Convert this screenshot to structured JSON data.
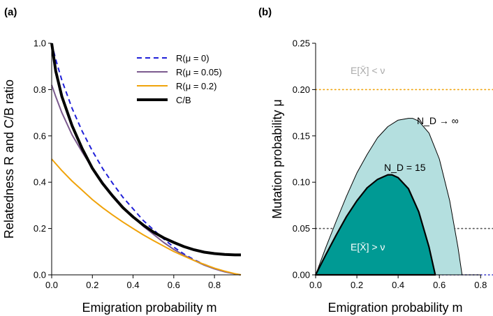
{
  "chart_data": [
    {
      "panel_label": "(a)",
      "type": "line",
      "xlabel": "Emigration probability m",
      "ylabel": "Relatedness R and C/B ratio",
      "xlim": [
        0,
        0.93
      ],
      "ylim": [
        0,
        1.0
      ],
      "xticks": [
        0.0,
        0.2,
        0.4,
        0.6,
        0.8
      ],
      "yticks": [
        0.0,
        0.2,
        0.4,
        0.6,
        0.8,
        1.0
      ],
      "legend_position": "top-right",
      "series": [
        {
          "name": "R(μ = 0)",
          "color": "#1f1fd8",
          "dash": "dashed",
          "x": [
            0,
            0.02,
            0.05,
            0.1,
            0.15,
            0.2,
            0.25,
            0.3,
            0.35,
            0.4,
            0.45,
            0.5,
            0.55,
            0.6,
            0.65,
            0.7,
            0.75,
            0.8,
            0.85,
            0.9,
            0.93
          ],
          "y": [
            1.0,
            0.93,
            0.84,
            0.72,
            0.62,
            0.535,
            0.46,
            0.395,
            0.335,
            0.285,
            0.235,
            0.195,
            0.155,
            0.12,
            0.09,
            0.065,
            0.045,
            0.028,
            0.014,
            0.004,
            0.0
          ]
        },
        {
          "name": "R(μ = 0.05)",
          "color": "#7b5a8e",
          "dash": "solid",
          "x": [
            0,
            0.02,
            0.05,
            0.1,
            0.15,
            0.2,
            0.25,
            0.3,
            0.35,
            0.4,
            0.45,
            0.5,
            0.55,
            0.6,
            0.65,
            0.7,
            0.75,
            0.8,
            0.85,
            0.9,
            0.93
          ],
          "y": [
            0.82,
            0.77,
            0.7,
            0.605,
            0.53,
            0.46,
            0.4,
            0.345,
            0.295,
            0.25,
            0.21,
            0.175,
            0.14,
            0.11,
            0.085,
            0.062,
            0.042,
            0.026,
            0.013,
            0.004,
            0.0
          ]
        },
        {
          "name": "R(μ = 0.2)",
          "color": "#f0a30a",
          "dash": "solid",
          "x": [
            0,
            0.05,
            0.1,
            0.15,
            0.2,
            0.25,
            0.3,
            0.35,
            0.4,
            0.45,
            0.5,
            0.55,
            0.6,
            0.65,
            0.7,
            0.75,
            0.8,
            0.85,
            0.9,
            0.93
          ],
          "y": [
            0.5,
            0.45,
            0.405,
            0.365,
            0.325,
            0.29,
            0.258,
            0.228,
            0.2,
            0.173,
            0.148,
            0.124,
            0.101,
            0.081,
            0.062,
            0.045,
            0.029,
            0.016,
            0.005,
            0.0
          ]
        },
        {
          "name": "C/B",
          "color": "#000000",
          "dash": "solid",
          "x": [
            0,
            0.02,
            0.05,
            0.1,
            0.15,
            0.2,
            0.25,
            0.3,
            0.35,
            0.4,
            0.45,
            0.5,
            0.55,
            0.6,
            0.65,
            0.7,
            0.75,
            0.8,
            0.85,
            0.9,
            0.93
          ],
          "y": [
            1.0,
            0.88,
            0.77,
            0.645,
            0.545,
            0.46,
            0.395,
            0.34,
            0.29,
            0.25,
            0.215,
            0.185,
            0.16,
            0.14,
            0.122,
            0.108,
            0.098,
            0.092,
            0.088,
            0.086,
            0.086
          ]
        }
      ]
    },
    {
      "panel_label": "(b)",
      "type": "area",
      "xlabel": "Emigration probability m",
      "ylabel": "Mutation probability μ",
      "xlim": [
        0,
        0.86
      ],
      "ylim": [
        0,
        0.25
      ],
      "xticks": [
        0.0,
        0.2,
        0.4,
        0.6,
        0.8
      ],
      "yticks": [
        0.0,
        0.05,
        0.1,
        0.15,
        0.2,
        0.25
      ],
      "hlines": [
        {
          "y": 0.2,
          "color": "#f0a30a",
          "style": "dotted"
        },
        {
          "y": 0.05,
          "color": "#555555",
          "style": "dotted"
        },
        {
          "y": 0.0,
          "color": "#3333cc",
          "style": "dotted"
        }
      ],
      "series": [
        {
          "name": "N_D → ∞",
          "color": "#000000",
          "fill": "#b4dfdf",
          "x": [
            0,
            0.05,
            0.1,
            0.15,
            0.2,
            0.25,
            0.3,
            0.35,
            0.4,
            0.45,
            0.47,
            0.5,
            0.55,
            0.6,
            0.65,
            0.69,
            0.71
          ],
          "y": [
            0,
            0.03,
            0.058,
            0.085,
            0.11,
            0.13,
            0.148,
            0.16,
            0.167,
            0.169,
            0.169,
            0.166,
            0.153,
            0.125,
            0.08,
            0.03,
            0.0
          ]
        },
        {
          "name": "N_D = 15",
          "color": "#000000",
          "fill": "#009a94",
          "x": [
            0,
            0.05,
            0.1,
            0.15,
            0.2,
            0.25,
            0.3,
            0.35,
            0.37,
            0.4,
            0.45,
            0.5,
            0.55,
            0.58
          ],
          "y": [
            0,
            0.022,
            0.043,
            0.063,
            0.08,
            0.094,
            0.103,
            0.108,
            0.108,
            0.105,
            0.093,
            0.068,
            0.03,
            0.0
          ]
        }
      ],
      "annotations": {
        "top_region": "E[X̄] < ν",
        "bottom_region": "E[X̄] > ν",
        "label_infinite": "N_D → ∞",
        "label_15": "N_D = 15"
      }
    }
  ]
}
